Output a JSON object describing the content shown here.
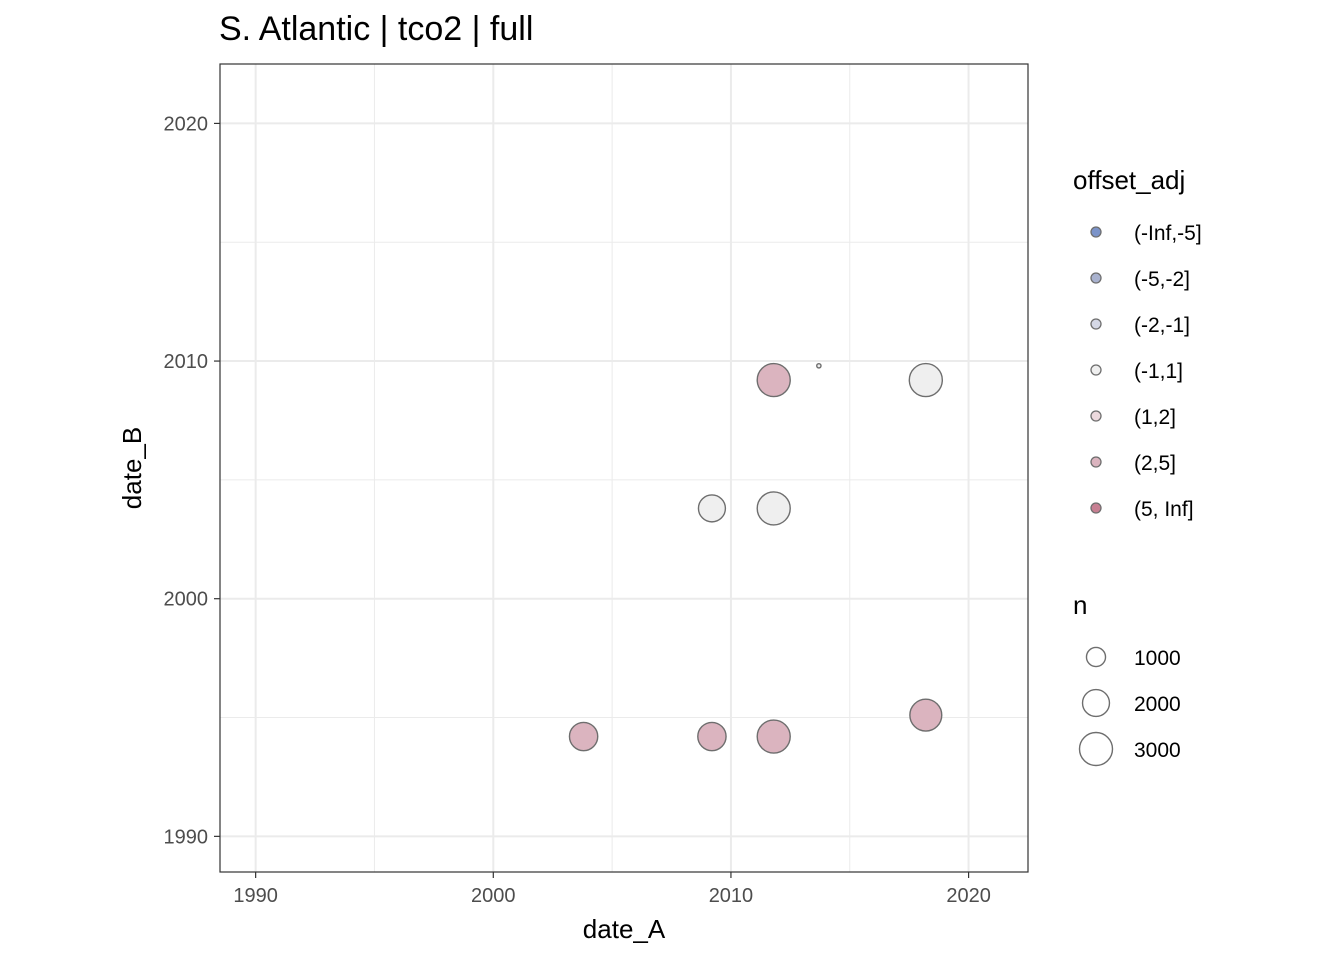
{
  "chart_data": {
    "type": "scatter",
    "title": "S. Atlantic | tco2 | full",
    "xlabel": "date_A",
    "ylabel": "date_B",
    "xlim": [
      1988.5,
      2022.5
    ],
    "ylim": [
      1988.5,
      2022.5
    ],
    "x_ticks": [
      1990,
      2000,
      2010,
      2020
    ],
    "y_ticks": [
      1990,
      2000,
      2010,
      2020
    ],
    "x_tick_labels": [
      "1990",
      "2000",
      "2010",
      "2020"
    ],
    "y_tick_labels": [
      "1990",
      "2000",
      "2010",
      "2020"
    ],
    "grid": true,
    "points": [
      {
        "x": 2011.8,
        "y": 2009.2,
        "offset_adj": "(2,5]",
        "n": 3000
      },
      {
        "x": 2013.7,
        "y": 2009.8,
        "offset_adj": "(-1,1]",
        "n": 50
      },
      {
        "x": 2018.2,
        "y": 2009.2,
        "offset_adj": "(-1,1]",
        "n": 3000
      },
      {
        "x": 2009.2,
        "y": 2003.8,
        "offset_adj": "(-1,1]",
        "n": 2000
      },
      {
        "x": 2011.8,
        "y": 2003.8,
        "offset_adj": "(-1,1]",
        "n": 3000
      },
      {
        "x": 2003.8,
        "y": 1994.2,
        "offset_adj": "(2,5]",
        "n": 2200
      },
      {
        "x": 2009.2,
        "y": 1994.2,
        "offset_adj": "(2,5]",
        "n": 2200
      },
      {
        "x": 2011.8,
        "y": 1994.2,
        "offset_adj": "(2,5]",
        "n": 3000
      },
      {
        "x": 2018.2,
        "y": 1995.1,
        "offset_adj": "(2,5]",
        "n": 2800
      }
    ],
    "legend": {
      "placement": "right",
      "color_title": "offset_adj",
      "color_entries": [
        {
          "label": "(-Inf,-5]",
          "color": "#7b93c9"
        },
        {
          "label": "(-5,-2]",
          "color": "#a9b2cf"
        },
        {
          "label": "(-2,-1]",
          "color": "#d5d8e6"
        },
        {
          "label": "(-1,1]",
          "color": "#efefef"
        },
        {
          "label": "(1,2]",
          "color": "#ecd9dd"
        },
        {
          "label": "(2,5]",
          "color": "#dbb4bf"
        },
        {
          "label": "(5, Inf]",
          "color": "#c77f92"
        }
      ],
      "size_title": "n",
      "size_entries": [
        {
          "label": "1000",
          "n": 1000
        },
        {
          "label": "2000",
          "n": 2000
        },
        {
          "label": "3000",
          "n": 3000
        }
      ]
    }
  }
}
